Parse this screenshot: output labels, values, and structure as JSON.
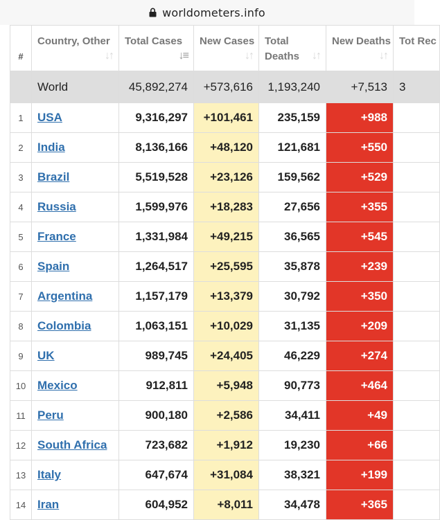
{
  "browser": {
    "url": "worldometers.info",
    "lock_icon": "lock-icon"
  },
  "table": {
    "columns": [
      {
        "label": "#",
        "sort_icon": ""
      },
      {
        "label": "Country, Other",
        "sort_icon": "sort-icon"
      },
      {
        "label": "Total Cases",
        "sort_icon": "sort-descending-icon"
      },
      {
        "label": "New Cases",
        "sort_icon": "sort-icon"
      },
      {
        "label": "Total Deaths",
        "sort_icon": "sort-icon"
      },
      {
        "label": "New Deaths",
        "sort_icon": "sort-icon"
      },
      {
        "label": "Tot Rec",
        "sort_icon": ""
      }
    ],
    "world": {
      "country": "World",
      "total_cases": "45,892,274",
      "new_cases": "+573,616",
      "total_deaths": "1,193,240",
      "new_deaths": "+7,513",
      "total_recovered": "3"
    },
    "rows": [
      {
        "rank": "1",
        "country": "USA",
        "total_cases": "9,316,297",
        "new_cases": "+101,461",
        "total_deaths": "235,159",
        "new_deaths": "+988"
      },
      {
        "rank": "2",
        "country": "India",
        "total_cases": "8,136,166",
        "new_cases": "+48,120",
        "total_deaths": "121,681",
        "new_deaths": "+550"
      },
      {
        "rank": "3",
        "country": "Brazil",
        "total_cases": "5,519,528",
        "new_cases": "+23,126",
        "total_deaths": "159,562",
        "new_deaths": "+529"
      },
      {
        "rank": "4",
        "country": "Russia",
        "total_cases": "1,599,976",
        "new_cases": "+18,283",
        "total_deaths": "27,656",
        "new_deaths": "+355"
      },
      {
        "rank": "5",
        "country": "France",
        "total_cases": "1,331,984",
        "new_cases": "+49,215",
        "total_deaths": "36,565",
        "new_deaths": "+545"
      },
      {
        "rank": "6",
        "country": "Spain",
        "total_cases": "1,264,517",
        "new_cases": "+25,595",
        "total_deaths": "35,878",
        "new_deaths": "+239"
      },
      {
        "rank": "7",
        "country": "Argentina",
        "total_cases": "1,157,179",
        "new_cases": "+13,379",
        "total_deaths": "30,792",
        "new_deaths": "+350"
      },
      {
        "rank": "8",
        "country": "Colombia",
        "total_cases": "1,063,151",
        "new_cases": "+10,029",
        "total_deaths": "31,135",
        "new_deaths": "+209"
      },
      {
        "rank": "9",
        "country": "UK",
        "total_cases": "989,745",
        "new_cases": "+24,405",
        "total_deaths": "46,229",
        "new_deaths": "+274"
      },
      {
        "rank": "10",
        "country": "Mexico",
        "total_cases": "912,811",
        "new_cases": "+5,948",
        "total_deaths": "90,773",
        "new_deaths": "+464"
      },
      {
        "rank": "11",
        "country": "Peru",
        "total_cases": "900,180",
        "new_cases": "+2,586",
        "total_deaths": "34,411",
        "new_deaths": "+49"
      },
      {
        "rank": "12",
        "country": "South Africa",
        "total_cases": "723,682",
        "new_cases": "+1,912",
        "total_deaths": "19,230",
        "new_deaths": "+66"
      },
      {
        "rank": "13",
        "country": "Italy",
        "total_cases": "647,674",
        "new_cases": "+31,084",
        "total_deaths": "38,321",
        "new_deaths": "+199"
      },
      {
        "rank": "14",
        "country": "Iran",
        "total_cases": "604,952",
        "new_cases": "+8,011",
        "total_deaths": "34,478",
        "new_deaths": "+365"
      }
    ]
  },
  "colors": {
    "new_cases_bg": "#fdf2be",
    "new_deaths_bg": "#e23628",
    "link": "#2f6fad",
    "world_row_bg": "#dedede"
  }
}
